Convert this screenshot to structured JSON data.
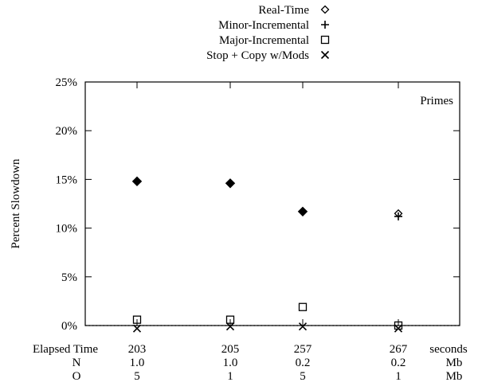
{
  "chart_data": {
    "type": "scatter",
    "title": "",
    "panel_label": "Primes",
    "ylabel": "Percent Slowdown",
    "ylim": [
      0,
      25
    ],
    "yticks": [
      0,
      5,
      10,
      15,
      20,
      25
    ],
    "ytick_labels": [
      "0%",
      "5%",
      "10%",
      "15%",
      "20%",
      "25%"
    ],
    "grid": false,
    "legend_position": "top-center",
    "categories": [
      "203",
      "205",
      "257",
      "267"
    ],
    "table_rows": [
      {
        "label": "Elapsed Time",
        "values": [
          "203",
          "205",
          "257",
          "267"
        ],
        "unit": "seconds"
      },
      {
        "label": "N",
        "values": [
          "1.0",
          "1.0",
          "0.2",
          "0.2"
        ],
        "unit": "Mb"
      },
      {
        "label": "O",
        "values": [
          "5",
          "1",
          "5",
          "1"
        ],
        "unit": "Mb"
      }
    ],
    "series": [
      {
        "name": "Real-Time",
        "marker": "diamond",
        "values": [
          14.8,
          14.6,
          11.7,
          11.5
        ]
      },
      {
        "name": "Minor-Incremental",
        "marker": "plus",
        "values": [
          14.8,
          14.6,
          11.7,
          11.2
        ]
      },
      {
        "name": "Major-Incremental",
        "marker": "square",
        "values": [
          0.6,
          0.6,
          1.9,
          0.0
        ]
      },
      {
        "name": "Stop + Copy w/Mods",
        "marker": "cross",
        "values": [
          -0.3,
          -0.1,
          -0.1,
          -0.3
        ]
      }
    ],
    "reference_line": {
      "value": 0,
      "style": "dotted"
    }
  }
}
